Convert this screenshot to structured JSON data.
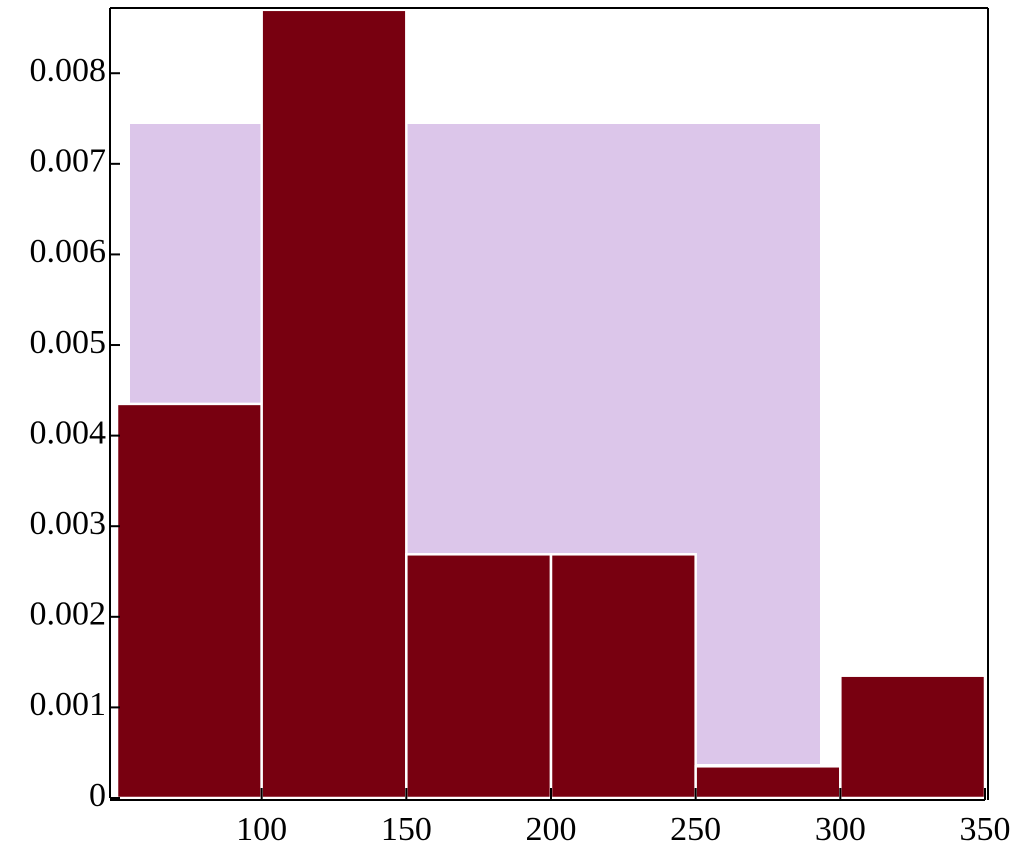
{
  "chart_data": {
    "type": "histogram",
    "bins": [
      50,
      100,
      150,
      200,
      250,
      300,
      350
    ],
    "values": [
      0.00435,
      0.0087,
      0.00269,
      0.00269,
      0.00035,
      0.00135
    ],
    "color": "#780010",
    "xlim": [
      50,
      350
    ],
    "xticks": [
      100,
      150,
      200,
      250,
      300,
      350
    ],
    "ylim": [
      0,
      0.00872
    ],
    "yticks": [
      0,
      0.001,
      0.002,
      0.003,
      0.004,
      0.005,
      0.006,
      0.007,
      0.008
    ]
  }
}
